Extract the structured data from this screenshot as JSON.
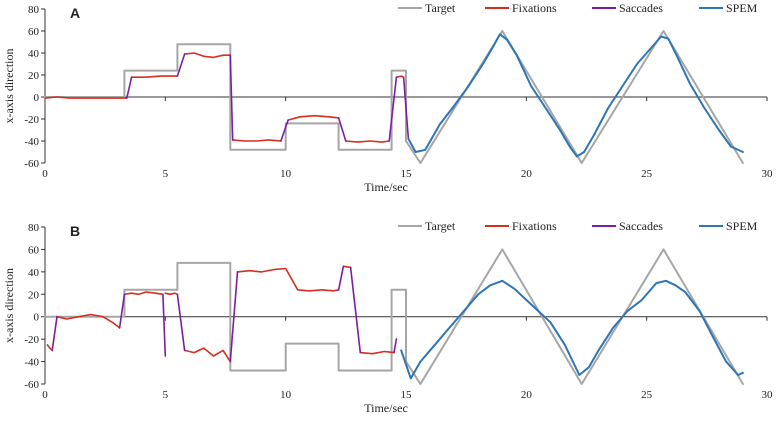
{
  "chart_data": [
    {
      "type": "line",
      "panel_label": "A",
      "xlabel": "Time/sec",
      "ylabel": "x-axis direction",
      "xlim": [
        0,
        30
      ],
      "ylim": [
        -60,
        80
      ],
      "xticks": [
        0,
        5,
        10,
        15,
        20,
        25,
        30
      ],
      "yticks": [
        -60,
        -40,
        -20,
        0,
        20,
        40,
        60,
        80
      ],
      "legend": {
        "placement": "top-right",
        "entries": [
          "Target",
          "Fixations",
          "Saccades",
          "SPEM"
        ]
      },
      "colors": {
        "Target": "#a6a6a6",
        "Fixations": "#d62f1f",
        "Saccades": "#7b1fa2",
        "SPEM": "#2e75b6"
      },
      "series": [
        {
          "name": "Target",
          "x": [
            0,
            3.3,
            3.3,
            5.5,
            5.5,
            7.7,
            7.7,
            10,
            10,
            12.2,
            12.2,
            14.4,
            14.4,
            15,
            15,
            15.6,
            19,
            22.3,
            25.7,
            29
          ],
          "y": [
            0,
            0,
            24,
            24,
            48,
            48,
            -48,
            -48,
            -24,
            -24,
            -48,
            -48,
            24,
            24,
            -40,
            -60,
            60,
            -60,
            60,
            -60
          ]
        },
        {
          "name": "Fixations",
          "segments": [
            {
              "x": [
                0,
                0.5,
                1,
                1.5,
                2,
                2.5,
                3,
                3.4
              ],
              "y": [
                -1,
                0,
                -1,
                -1,
                -1,
                -1,
                -1,
                -1
              ]
            },
            {
              "x": [
                3.6,
                4.2,
                4.8,
                5.5
              ],
              "y": [
                18,
                18,
                19,
                19
              ]
            },
            {
              "x": [
                5.8,
                6.2,
                6.6,
                7,
                7.4,
                7.7
              ],
              "y": [
                39,
                40,
                37,
                36,
                38,
                38
              ]
            },
            {
              "x": [
                7.8,
                8.3,
                8.8,
                9.3,
                9.8
              ],
              "y": [
                -39,
                -40,
                -40,
                -39,
                -40
              ]
            },
            {
              "x": [
                10.1,
                10.6,
                11.2,
                11.8,
                12.2
              ],
              "y": [
                -21,
                -18,
                -17,
                -18,
                -19
              ]
            },
            {
              "x": [
                12.5,
                13,
                13.5,
                14,
                14.3
              ],
              "y": [
                -40,
                -41,
                -40,
                -41,
                -40
              ]
            },
            {
              "x": [
                14.6,
                14.8,
                14.9
              ],
              "y": [
                18,
                19,
                18
              ]
            }
          ]
        },
        {
          "name": "Saccades",
          "segments": [
            {
              "x": [
                3.4,
                3.6
              ],
              "y": [
                -1,
                18
              ]
            },
            {
              "x": [
                5.5,
                5.8
              ],
              "y": [
                19,
                39
              ]
            },
            {
              "x": [
                7.7,
                7.8
              ],
              "y": [
                38,
                -39
              ]
            },
            {
              "x": [
                9.8,
                10.1
              ],
              "y": [
                -40,
                -21
              ]
            },
            {
              "x": [
                12.2,
                12.5
              ],
              "y": [
                -19,
                -40
              ]
            },
            {
              "x": [
                14.3,
                14.6
              ],
              "y": [
                -40,
                18
              ]
            },
            {
              "x": [
                14.9,
                15.1
              ],
              "y": [
                18,
                -38
              ]
            }
          ]
        },
        {
          "name": "SPEM",
          "segments": [
            {
              "x": [
                15.1,
                15.4,
                15.8,
                16.4,
                17,
                17.6,
                18.2,
                18.6,
                18.9,
                19.2,
                19.6,
                20.2,
                20.8,
                21.4,
                21.8,
                22.1,
                22.4,
                22.8,
                23.4,
                24,
                24.6,
                25.2,
                25.6,
                25.9,
                26.2,
                26.8,
                27.4,
                28,
                28.5,
                29
              ],
              "y": [
                -38,
                -50,
                -48,
                -25,
                -8,
                10,
                30,
                45,
                57,
                52,
                38,
                10,
                -10,
                -30,
                -45,
                -54,
                -50,
                -35,
                -10,
                10,
                30,
                45,
                55,
                53,
                40,
                12,
                -10,
                -30,
                -45,
                -50
              ]
            }
          ]
        }
      ]
    },
    {
      "type": "line",
      "panel_label": "B",
      "xlabel": "Time/sec",
      "ylabel": "x-axis direction",
      "xlim": [
        0,
        30
      ],
      "ylim": [
        -60,
        80
      ],
      "xticks": [
        0,
        5,
        10,
        15,
        20,
        25,
        30
      ],
      "yticks": [
        -60,
        -40,
        -20,
        0,
        20,
        40,
        60,
        80
      ],
      "legend": {
        "placement": "top-right",
        "entries": [
          "Target",
          "Fixations",
          "Saccades",
          "SPEM"
        ]
      },
      "colors": {
        "Target": "#a6a6a6",
        "Fixations": "#d62f1f",
        "Saccades": "#7b1fa2",
        "SPEM": "#2e75b6"
      },
      "series": [
        {
          "name": "Target",
          "x": [
            0,
            3.3,
            3.3,
            5.5,
            5.5,
            7.7,
            7.7,
            10,
            10,
            12.2,
            12.2,
            14.4,
            14.4,
            15,
            15,
            15.6,
            19,
            22.3,
            25.7,
            29
          ],
          "y": [
            0,
            0,
            24,
            24,
            48,
            48,
            -48,
            -48,
            -24,
            -24,
            -48,
            -48,
            24,
            24,
            -40,
            -60,
            60,
            -60,
            60,
            -60
          ]
        },
        {
          "name": "Fixations",
          "segments": [
            {
              "x": [
                0.1,
                0.2,
                0.3
              ],
              "y": [
                -25,
                -28,
                -30
              ]
            },
            {
              "x": [
                0.5,
                0.9,
                1.4,
                1.9,
                2.4,
                2.8,
                3.1
              ],
              "y": [
                0,
                -2,
                0,
                2,
                0,
                -5,
                -10
              ]
            },
            {
              "x": [
                3.3,
                3.6,
                3.9,
                4.2,
                4.6,
                4.9
              ],
              "y": [
                20,
                21,
                20,
                22,
                21,
                20
              ]
            },
            {
              "x": [
                5,
                5.2,
                5.4,
                5.5
              ],
              "y": [
                21,
                20,
                21,
                20
              ]
            },
            {
              "x": [
                5.8,
                6.2,
                6.6,
                7,
                7.4,
                7.7
              ],
              "y": [
                -30,
                -32,
                -28,
                -35,
                -30,
                -40
              ]
            },
            {
              "x": [
                8,
                8.5,
                9,
                9.5,
                10,
                10.5,
                11,
                11.5,
                12,
                12.2
              ],
              "y": [
                40,
                41,
                40,
                42,
                43,
                24,
                23,
                24,
                23,
                24
              ]
            },
            {
              "x": [
                12.4,
                12.7
              ],
              "y": [
                45,
                44
              ]
            },
            {
              "x": [
                13.1,
                13.6,
                14.1,
                14.5
              ],
              "y": [
                -32,
                -33,
                -31,
                -32
              ]
            }
          ]
        },
        {
          "name": "Saccades",
          "segments": [
            {
              "x": [
                0.3,
                0.5
              ],
              "y": [
                -30,
                0
              ]
            },
            {
              "x": [
                3.1,
                3.3
              ],
              "y": [
                -10,
                20
              ]
            },
            {
              "x": [
                4.9,
                5
              ],
              "y": [
                20,
                -35
              ]
            },
            {
              "x": [
                5.5,
                5.8
              ],
              "y": [
                20,
                -30
              ]
            },
            {
              "x": [
                7.7,
                8
              ],
              "y": [
                -40,
                40
              ]
            },
            {
              "x": [
                12.2,
                12.4
              ],
              "y": [
                24,
                45
              ]
            },
            {
              "x": [
                12.7,
                13.1
              ],
              "y": [
                44,
                -32
              ]
            },
            {
              "x": [
                14.5,
                14.6
              ],
              "y": [
                -32,
                -20
              ]
            }
          ]
        },
        {
          "name": "SPEM",
          "segments": [
            {
              "x": [
                14.8,
                15.2,
                15.6,
                16.2,
                16.8,
                17.4,
                18,
                18.5,
                19,
                19.5,
                20,
                20.5,
                21,
                21.6,
                22.2,
                22.6,
                23,
                23.6,
                24.2,
                24.8,
                25.4,
                25.8,
                26.2,
                26.6,
                27.2,
                27.8,
                28.3,
                28.8,
                29
              ],
              "y": [
                -30,
                -55,
                -40,
                -25,
                -10,
                5,
                20,
                28,
                32,
                25,
                15,
                5,
                -5,
                -25,
                -52,
                -45,
                -30,
                -10,
                5,
                15,
                30,
                32,
                28,
                22,
                5,
                -20,
                -40,
                -52,
                -50
              ]
            }
          ]
        }
      ]
    }
  ]
}
